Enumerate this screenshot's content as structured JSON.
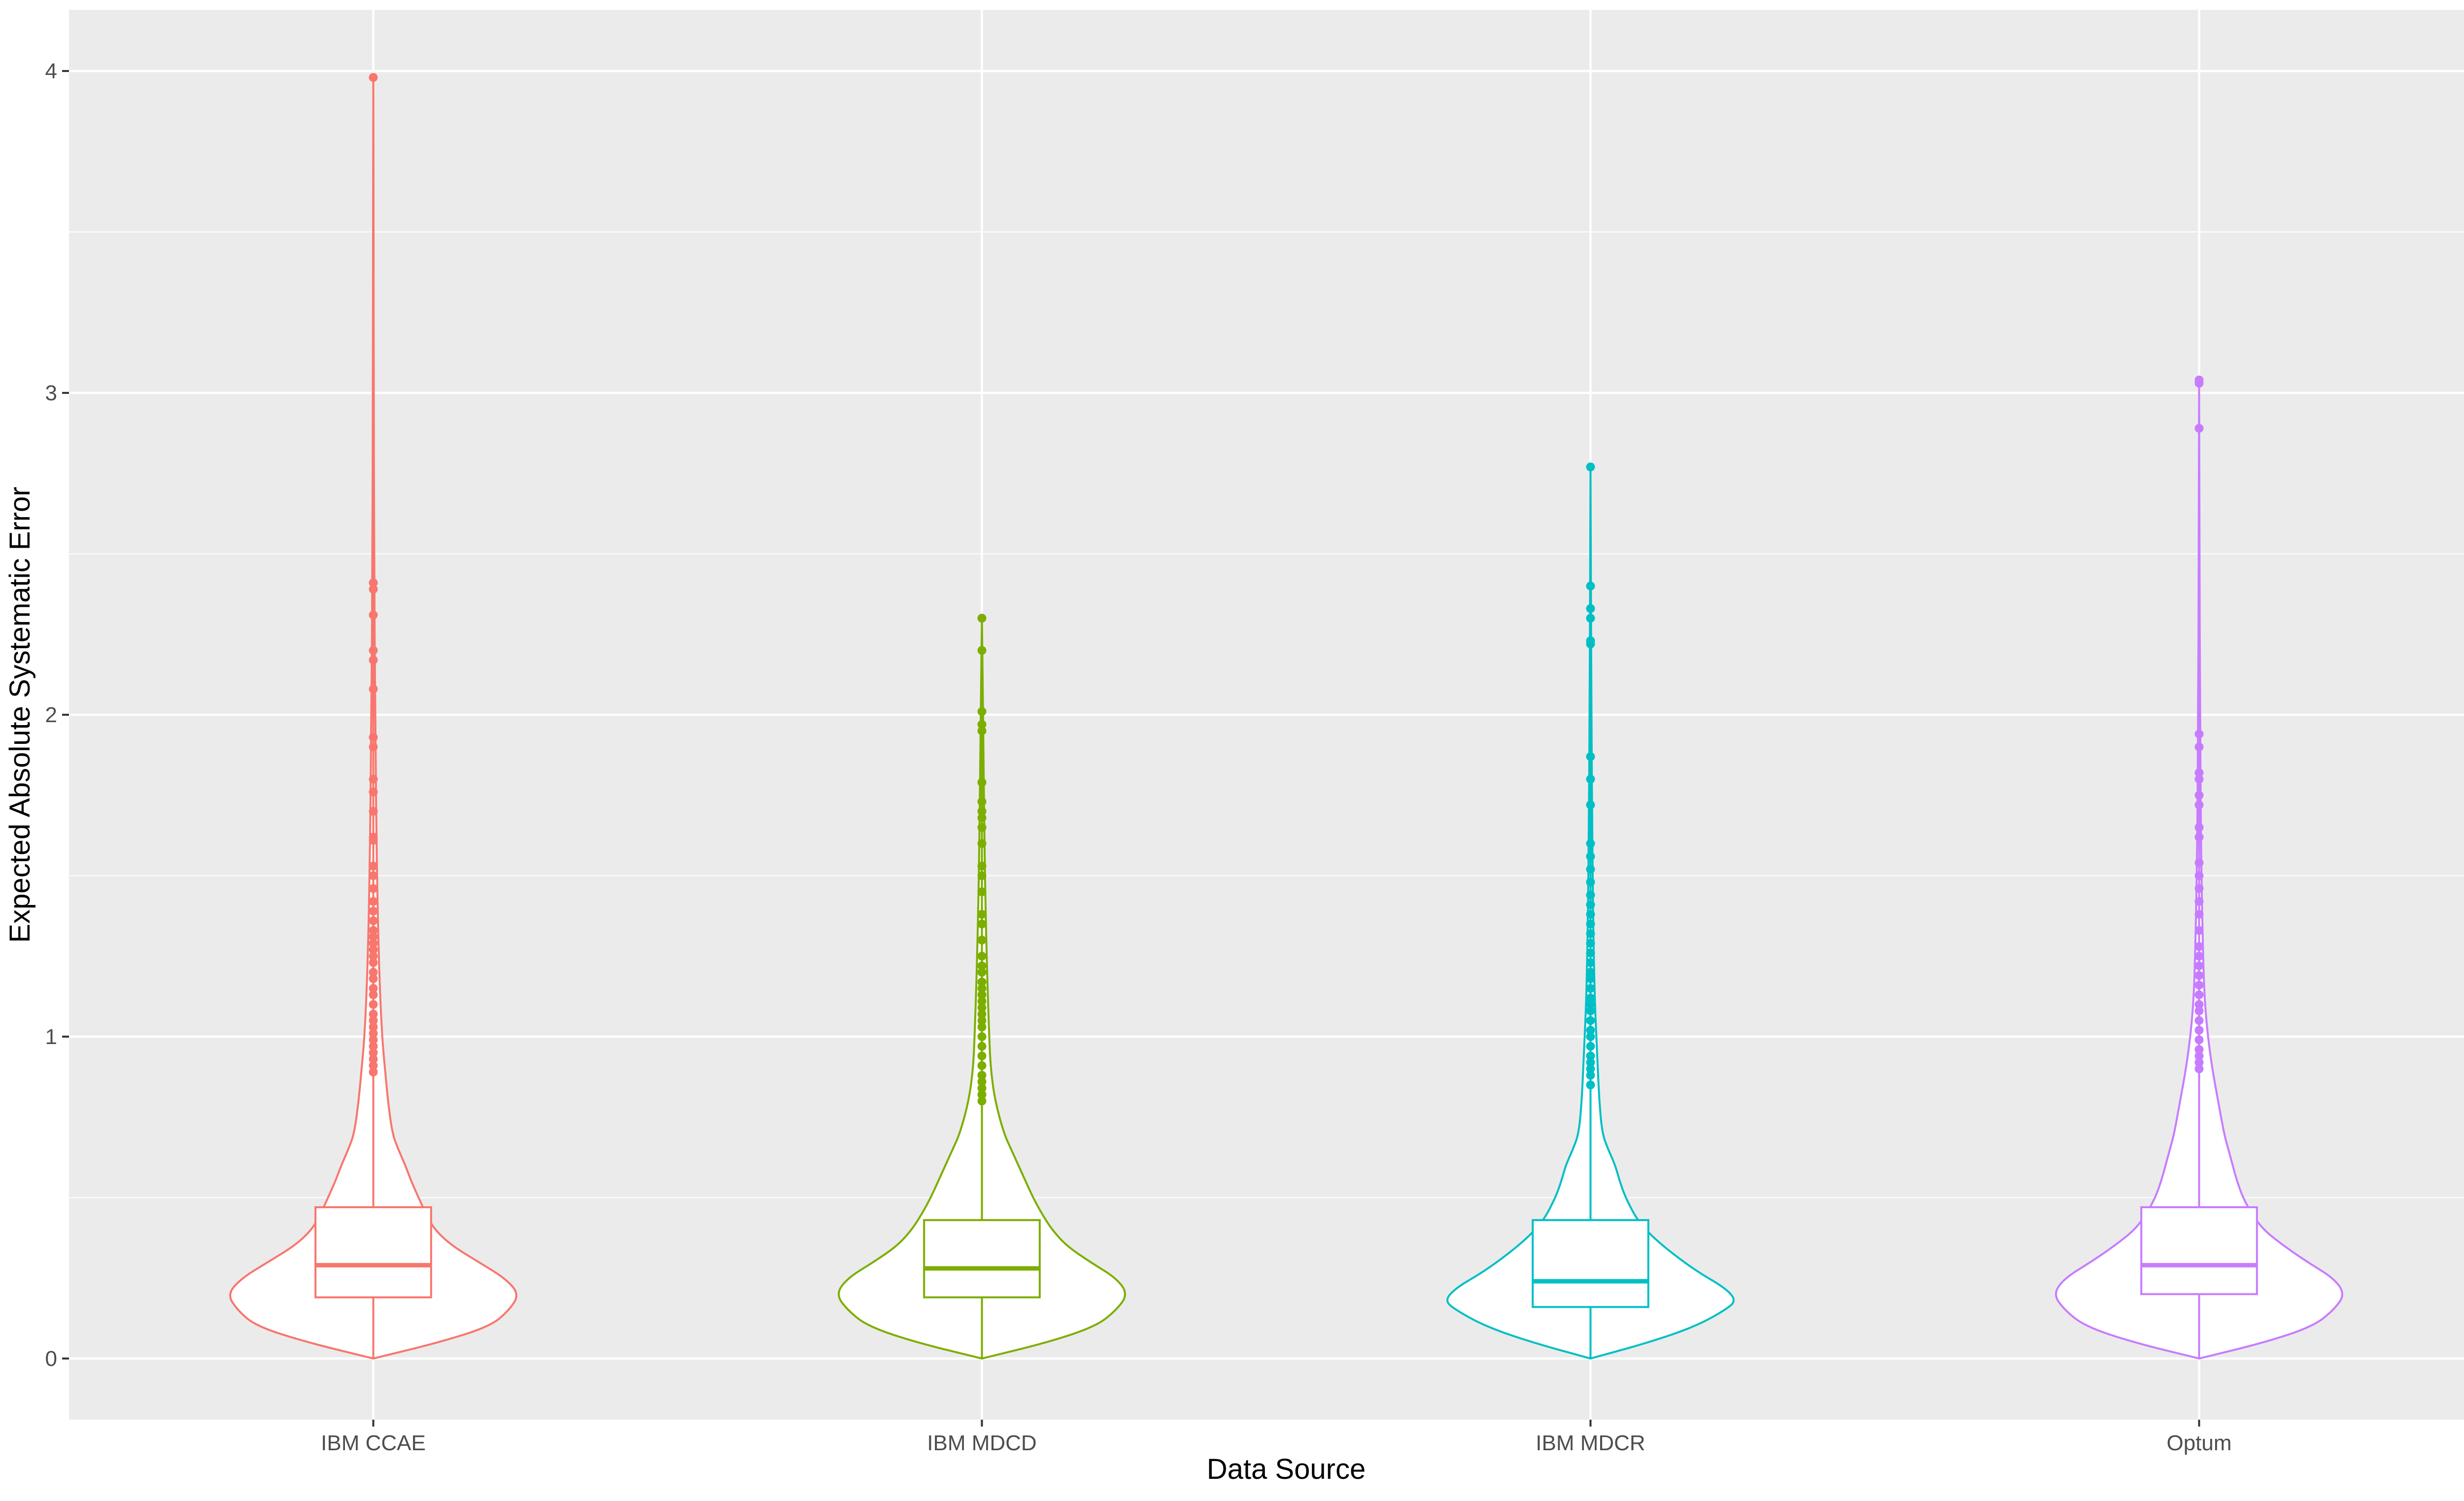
{
  "chart_data": {
    "type": "violin",
    "xlabel": "Data Source",
    "ylabel": "Expected Absolute Systematic Error",
    "ylim": [
      -0.19,
      4.19
    ],
    "yticks": [
      0,
      1,
      2,
      3,
      4
    ],
    "grid": true,
    "legend": "none",
    "categories": [
      "IBM CCAE",
      "IBM MDCD",
      "IBM MDCR",
      "Optum"
    ],
    "series": [
      {
        "category": "IBM CCAE",
        "color": "#F8766D",
        "box": {
          "q1": 0.19,
          "median": 0.29,
          "q3": 0.47,
          "whisker_low": 0.0,
          "whisker_high": 0.88
        },
        "violin_profile": [
          [
            0.0,
            0.0
          ],
          [
            0.05,
            0.45
          ],
          [
            0.1,
            0.8
          ],
          [
            0.15,
            0.93
          ],
          [
            0.2,
            1.0
          ],
          [
            0.25,
            0.9
          ],
          [
            0.3,
            0.72
          ],
          [
            0.35,
            0.54
          ],
          [
            0.4,
            0.42
          ],
          [
            0.45,
            0.36
          ],
          [
            0.5,
            0.31
          ],
          [
            0.55,
            0.26
          ],
          [
            0.6,
            0.22
          ],
          [
            0.65,
            0.17
          ],
          [
            0.7,
            0.13
          ],
          [
            0.8,
            0.1
          ],
          [
            0.9,
            0.08
          ],
          [
            1.0,
            0.06
          ],
          [
            1.2,
            0.04
          ],
          [
            1.5,
            0.025
          ],
          [
            2.0,
            0.012
          ],
          [
            2.5,
            0.006
          ],
          [
            3.0,
            0.003
          ],
          [
            3.5,
            0.002
          ],
          [
            3.98,
            0.0
          ]
        ],
        "outliers": [
          0.89,
          0.91,
          0.93,
          0.95,
          0.97,
          0.99,
          1.01,
          1.03,
          1.05,
          1.07,
          1.1,
          1.13,
          1.15,
          1.18,
          1.2,
          1.23,
          1.25,
          1.27,
          1.29,
          1.31,
          1.33,
          1.36,
          1.39,
          1.42,
          1.46,
          1.5,
          1.53,
          1.61,
          1.62,
          1.7,
          1.76,
          1.8,
          1.9,
          1.93,
          2.08,
          2.17,
          2.2,
          2.31,
          2.39,
          2.41,
          3.98
        ]
      },
      {
        "category": "IBM MDCD",
        "color": "#7CAE00",
        "box": {
          "q1": 0.19,
          "median": 0.28,
          "q3": 0.43,
          "whisker_low": 0.0,
          "whisker_high": 0.79
        },
        "violin_profile": [
          [
            0.0,
            0.0
          ],
          [
            0.05,
            0.45
          ],
          [
            0.1,
            0.78
          ],
          [
            0.15,
            0.92
          ],
          [
            0.2,
            1.0
          ],
          [
            0.25,
            0.92
          ],
          [
            0.3,
            0.74
          ],
          [
            0.35,
            0.58
          ],
          [
            0.4,
            0.48
          ],
          [
            0.45,
            0.41
          ],
          [
            0.5,
            0.35
          ],
          [
            0.55,
            0.3
          ],
          [
            0.6,
            0.25
          ],
          [
            0.65,
            0.2
          ],
          [
            0.7,
            0.15
          ],
          [
            0.8,
            0.09
          ],
          [
            0.9,
            0.06
          ],
          [
            1.0,
            0.05
          ],
          [
            1.2,
            0.035
          ],
          [
            1.5,
            0.02
          ],
          [
            2.0,
            0.008
          ],
          [
            2.3,
            0.0
          ]
        ],
        "outliers": [
          0.8,
          0.82,
          0.84,
          0.86,
          0.88,
          0.91,
          0.94,
          0.97,
          1.0,
          1.03,
          1.05,
          1.07,
          1.09,
          1.11,
          1.13,
          1.15,
          1.17,
          1.2,
          1.22,
          1.25,
          1.3,
          1.35,
          1.38,
          1.45,
          1.5,
          1.53,
          1.6,
          1.65,
          1.68,
          1.7,
          1.73,
          1.79,
          1.95,
          1.97,
          2.01,
          2.2,
          2.3
        ]
      },
      {
        "category": "IBM MDCR",
        "color": "#00BFC4",
        "box": {
          "q1": 0.16,
          "median": 0.24,
          "q3": 0.43,
          "whisker_low": 0.0,
          "whisker_high": 0.84
        },
        "violin_profile": [
          [
            0.0,
            0.0
          ],
          [
            0.05,
            0.4
          ],
          [
            0.1,
            0.72
          ],
          [
            0.15,
            0.92
          ],
          [
            0.18,
            1.0
          ],
          [
            0.22,
            0.92
          ],
          [
            0.27,
            0.73
          ],
          [
            0.33,
            0.55
          ],
          [
            0.38,
            0.42
          ],
          [
            0.43,
            0.32
          ],
          [
            0.5,
            0.24
          ],
          [
            0.55,
            0.2
          ],
          [
            0.6,
            0.17
          ],
          [
            0.65,
            0.12
          ],
          [
            0.7,
            0.08
          ],
          [
            0.8,
            0.06
          ],
          [
            0.9,
            0.05
          ],
          [
            1.0,
            0.04
          ],
          [
            1.1,
            0.03
          ],
          [
            1.3,
            0.02
          ],
          [
            1.6,
            0.012
          ],
          [
            2.0,
            0.006
          ],
          [
            2.4,
            0.003
          ],
          [
            2.77,
            0.0
          ]
        ],
        "outliers": [
          0.85,
          0.88,
          0.9,
          0.92,
          0.94,
          0.97,
          1.0,
          1.02,
          1.05,
          1.08,
          1.1,
          1.12,
          1.15,
          1.18,
          1.2,
          1.23,
          1.26,
          1.29,
          1.32,
          1.35,
          1.38,
          1.41,
          1.44,
          1.48,
          1.52,
          1.56,
          1.6,
          1.72,
          1.8,
          1.87,
          2.22,
          2.23,
          2.3,
          2.33,
          2.4,
          2.77
        ]
      },
      {
        "category": "Optum",
        "color": "#C77CFF",
        "box": {
          "q1": 0.2,
          "median": 0.29,
          "q3": 0.47,
          "whisker_low": 0.0,
          "whisker_high": 0.89
        },
        "violin_profile": [
          [
            0.0,
            0.0
          ],
          [
            0.05,
            0.45
          ],
          [
            0.1,
            0.78
          ],
          [
            0.15,
            0.92
          ],
          [
            0.2,
            1.0
          ],
          [
            0.25,
            0.92
          ],
          [
            0.3,
            0.74
          ],
          [
            0.35,
            0.58
          ],
          [
            0.4,
            0.44
          ],
          [
            0.45,
            0.36
          ],
          [
            0.5,
            0.3
          ],
          [
            0.55,
            0.26
          ],
          [
            0.6,
            0.23
          ],
          [
            0.65,
            0.2
          ],
          [
            0.7,
            0.17
          ],
          [
            0.8,
            0.13
          ],
          [
            0.9,
            0.09
          ],
          [
            1.0,
            0.06
          ],
          [
            1.1,
            0.04
          ],
          [
            1.2,
            0.03
          ],
          [
            1.5,
            0.015
          ],
          [
            2.0,
            0.006
          ],
          [
            2.5,
            0.003
          ],
          [
            3.04,
            0.0
          ]
        ],
        "outliers": [
          0.9,
          0.92,
          0.94,
          0.96,
          0.99,
          1.02,
          1.05,
          1.08,
          1.1,
          1.13,
          1.16,
          1.19,
          1.22,
          1.25,
          1.28,
          1.33,
          1.38,
          1.42,
          1.46,
          1.5,
          1.54,
          1.62,
          1.65,
          1.72,
          1.75,
          1.8,
          1.82,
          1.9,
          1.94,
          2.89,
          3.03,
          3.04
        ]
      }
    ]
  }
}
